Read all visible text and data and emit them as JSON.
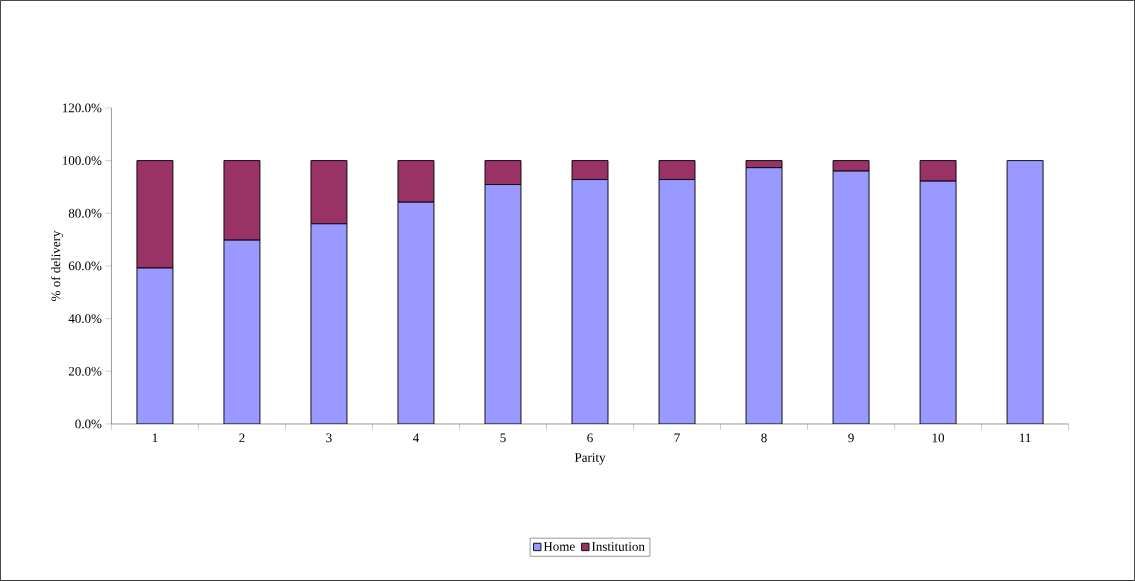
{
  "chart_data": {
    "type": "bar",
    "stacked": true,
    "xlabel": "Parity",
    "ylabel": "% of delivery",
    "categories": [
      "1",
      "2",
      "3",
      "4",
      "5",
      "6",
      "7",
      "8",
      "9",
      "10",
      "11"
    ],
    "series": [
      {
        "name": "Home",
        "color": "#9999ff",
        "values": [
          59.2,
          69.8,
          76.0,
          84.2,
          90.9,
          92.8,
          92.8,
          97.3,
          96.0,
          92.2,
          100
        ]
      },
      {
        "name": "Institution",
        "color": "#993366",
        "values": [
          40.8,
          30.2,
          24.0,
          15.8,
          9.1,
          7.2,
          7.2,
          2.7,
          4.0,
          7.8,
          0
        ]
      }
    ],
    "ylim": [
      0,
      120
    ],
    "yticks": [
      {
        "value": 0,
        "label": "0.0%"
      },
      {
        "value": 20,
        "label": "20.0%"
      },
      {
        "value": 40,
        "label": "40.0%"
      },
      {
        "value": 60,
        "label": "60.0%"
      },
      {
        "value": 80,
        "label": "80.0%"
      },
      {
        "value": 100,
        "label": "100.0%"
      },
      {
        "value": 120,
        "label": "120.0%"
      }
    ],
    "legend": "bottom",
    "grid": false
  }
}
